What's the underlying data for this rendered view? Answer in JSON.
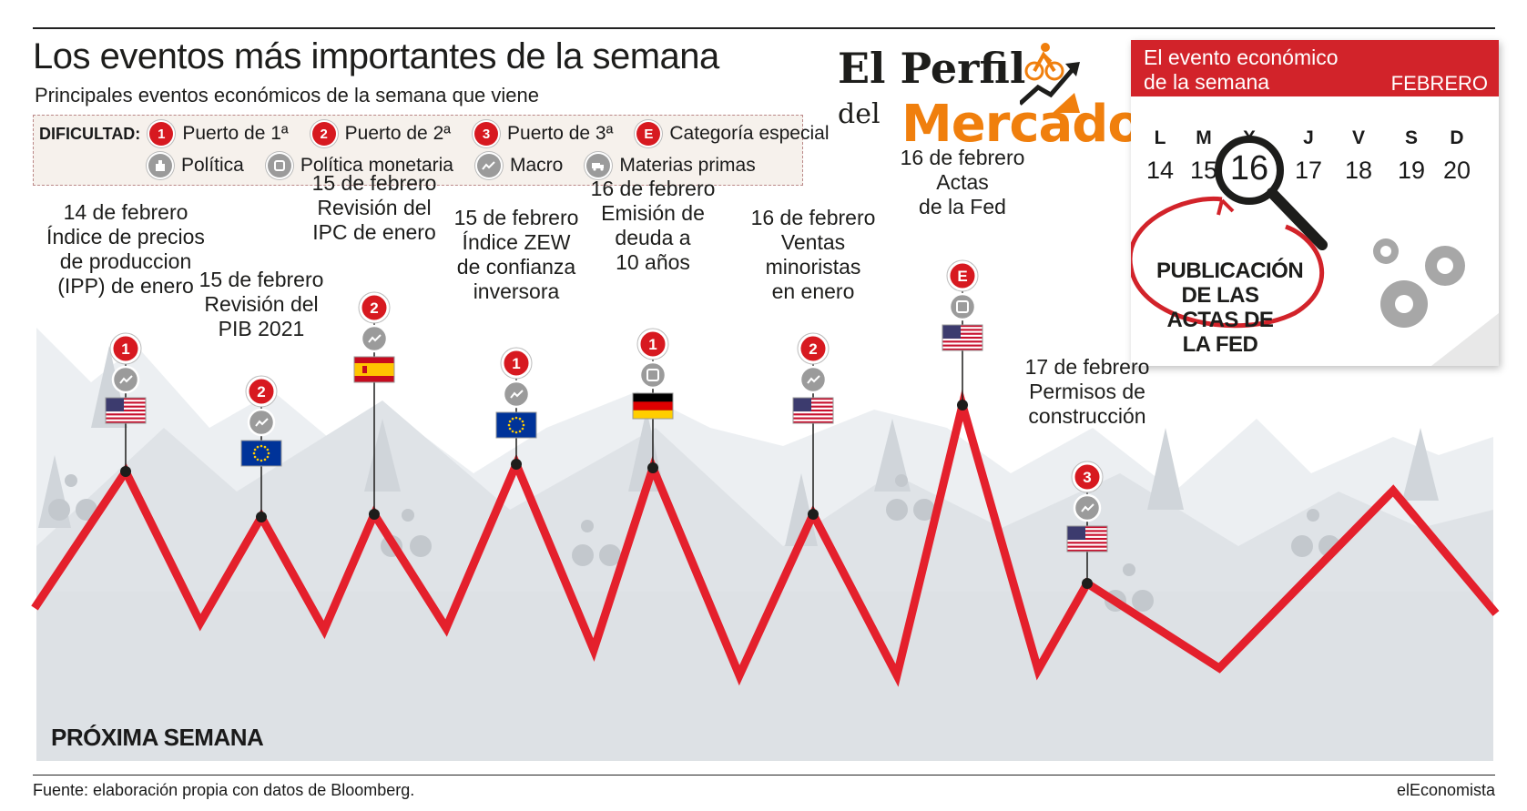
{
  "title": "Los eventos más importantes de la semana",
  "subtitle": "Principales eventos económicos de la semana que viene",
  "legend": {
    "label": "DIFICULTAD:",
    "items": [
      {
        "badge": "1",
        "text": "Puerto de 1ª"
      },
      {
        "badge": "2",
        "text": "Puerto de 2ª"
      },
      {
        "badge": "3",
        "text": "Puerto de 3ª"
      },
      {
        "badge": "E",
        "text": "Categoría especial"
      }
    ],
    "categories": [
      {
        "icon": "politics-icon",
        "text": "Política"
      },
      {
        "icon": "monetary-policy-icon",
        "text": "Política monetaria"
      },
      {
        "icon": "macro-icon",
        "text": "Macro"
      },
      {
        "icon": "commodities-icon",
        "text": "Materias primas"
      }
    ]
  },
  "logo": {
    "line1": "El Perfil",
    "line2": "del",
    "line3": "Mercado"
  },
  "calendar": {
    "header_line1": "El evento económico",
    "header_line2": "de la semana",
    "month": "FEBRERO",
    "days": [
      "L",
      "M",
      "X",
      "J",
      "V",
      "S",
      "D"
    ],
    "dates": [
      "14",
      "15",
      "16",
      "17",
      "18",
      "19",
      "20"
    ],
    "highlight": "16",
    "caption": "PUBLICACIÓN DE LAS ACTAS DE LA FED"
  },
  "events": [
    {
      "date": "14 de febrero",
      "lines": [
        "Índice de precios",
        "de produccion",
        "(IPP) de enero"
      ],
      "badge": "1",
      "category": "macro-icon",
      "flag": "usa-flag"
    },
    {
      "date": "15 de febrero",
      "lines": [
        "Revisión del",
        "PIB 2021"
      ],
      "badge": "2",
      "category": "macro-icon",
      "flag": "eu-flag"
    },
    {
      "date": "15 de febrero",
      "lines": [
        "Revisión del",
        "IPC de enero"
      ],
      "badge": "2",
      "category": "macro-icon",
      "flag": "spain-flag"
    },
    {
      "date": "15 de febrero",
      "lines": [
        "Índice ZEW",
        "de confianza",
        "inversora"
      ],
      "badge": "1",
      "category": "macro-icon",
      "flag": "eu-flag"
    },
    {
      "date": "16 de febrero",
      "lines": [
        "Emisión de",
        "deuda a",
        "10 años"
      ],
      "badge": "1",
      "category": "monetary-policy-icon",
      "flag": "germany-flag"
    },
    {
      "date": "16 de febrero",
      "lines": [
        "Ventas",
        "minoristas",
        "en enero"
      ],
      "badge": "2",
      "category": "macro-icon",
      "flag": "usa-flag"
    },
    {
      "date": "16 de febrero",
      "lines": [
        "Actas",
        "de la Fed"
      ],
      "badge": "E",
      "category": "monetary-policy-icon",
      "flag": "usa-flag"
    },
    {
      "date": "17 de febrero",
      "lines": [
        "Permisos de",
        "construcción"
      ],
      "badge": "3",
      "category": "macro-icon",
      "flag": "usa-flag"
    }
  ],
  "section_label": "PRÓXIMA SEMANA",
  "source": "Fuente: elaboración propia con datos de Bloomberg.",
  "credit": "elEconomista",
  "colors": {
    "accent": "#d71920",
    "logo_orange": "#f07f0d",
    "calendar_red": "#d2232a",
    "mountain": "#e1e5e9"
  }
}
